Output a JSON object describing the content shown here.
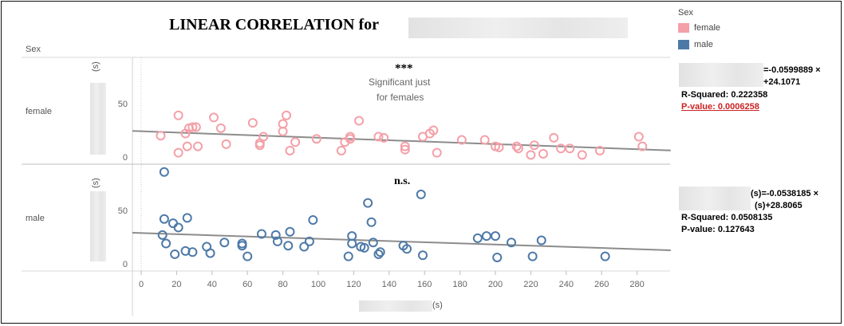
{
  "title": "LINEAR CORRELATION for",
  "row_header": "Sex",
  "x_axis_unit": "(s)",
  "y_axis_unit": "(s)",
  "legend": {
    "title": "Sex",
    "items": [
      {
        "label": "female",
        "color": "#f4a0a8"
      },
      {
        "label": "male",
        "color": "#4e79a7"
      }
    ]
  },
  "panels": [
    {
      "label": "female",
      "marker": "***",
      "annotation": [
        "Significant just",
        "for females"
      ],
      "stats": {
        "eq_line1": "=-0.0599889 ×",
        "eq_line2": "+24.1071",
        "r_squared": "R-Squared: 0.222358",
        "p_value": "P-value: 0.0006258"
      }
    },
    {
      "label": "male",
      "marker": "n.s.",
      "annotation": [],
      "stats": {
        "eq_line1": "(s)=-0.0538185 ×",
        "eq_line2": "(s)+28.8065",
        "r_squared": "R-Squared: 0.0508135",
        "p_value": "P-value: 0.127643"
      }
    }
  ],
  "chart_data": {
    "type": "scatter",
    "x_ticks": [
      0,
      20,
      40,
      60,
      80,
      100,
      120,
      140,
      160,
      180,
      200,
      220,
      240,
      260,
      280
    ],
    "xlim": [
      -5,
      299
    ],
    "ylim": [
      -5,
      95
    ],
    "y_ticks": [
      0,
      50
    ],
    "series": [
      {
        "name": "female",
        "color": "#f4a0a8",
        "trend": {
          "slope": -0.0599889,
          "intercept": 24.1071
        },
        "points": [
          [
            11,
            20
          ],
          [
            21,
            39
          ],
          [
            21,
            4
          ],
          [
            25,
            22
          ],
          [
            26,
            10
          ],
          [
            27,
            27
          ],
          [
            29,
            28
          ],
          [
            31,
            28
          ],
          [
            32,
            10
          ],
          [
            41,
            37
          ],
          [
            45,
            27
          ],
          [
            48,
            12
          ],
          [
            63,
            32
          ],
          [
            67,
            11
          ],
          [
            67,
            13
          ],
          [
            69,
            19
          ],
          [
            80,
            24
          ],
          [
            80,
            31
          ],
          [
            82,
            39
          ],
          [
            84,
            6
          ],
          [
            87,
            14
          ],
          [
            99,
            17
          ],
          [
            113,
            6
          ],
          [
            115,
            14
          ],
          [
            118,
            17
          ],
          [
            118,
            19
          ],
          [
            123,
            34
          ],
          [
            134,
            19
          ],
          [
            137,
            18
          ],
          [
            149,
            10
          ],
          [
            149,
            7
          ],
          [
            159,
            19
          ],
          [
            163,
            22
          ],
          [
            165,
            25
          ],
          [
            167,
            4
          ],
          [
            181,
            16
          ],
          [
            194,
            16
          ],
          [
            200,
            10
          ],
          [
            202,
            9
          ],
          [
            212,
            10
          ],
          [
            213,
            8
          ],
          [
            220,
            2
          ],
          [
            222,
            11
          ],
          [
            227,
            3
          ],
          [
            233,
            18
          ],
          [
            237,
            8
          ],
          [
            242,
            8
          ],
          [
            249,
            2
          ],
          [
            259,
            6
          ],
          [
            281,
            19
          ],
          [
            283,
            10
          ]
        ]
      },
      {
        "name": "male",
        "color": "#4e79a7",
        "trend": {
          "slope": -0.0538185,
          "intercept": 28.8065
        },
        "points": [
          [
            13,
            86
          ],
          [
            12,
            27
          ],
          [
            13,
            42
          ],
          [
            14,
            19
          ],
          [
            18,
            38
          ],
          [
            19,
            9
          ],
          [
            21,
            34
          ],
          [
            25,
            12
          ],
          [
            26,
            43
          ],
          [
            29,
            11
          ],
          [
            37,
            16
          ],
          [
            39,
            10
          ],
          [
            47,
            20
          ],
          [
            57,
            19
          ],
          [
            57,
            17
          ],
          [
            60,
            7
          ],
          [
            68,
            28
          ],
          [
            76,
            27
          ],
          [
            77,
            21
          ],
          [
            83,
            17
          ],
          [
            84,
            30
          ],
          [
            92,
            16
          ],
          [
            95,
            21
          ],
          [
            97,
            41
          ],
          [
            117,
            7
          ],
          [
            119,
            26
          ],
          [
            119,
            19
          ],
          [
            124,
            16
          ],
          [
            126,
            15
          ],
          [
            128,
            57
          ],
          [
            130,
            39
          ],
          [
            131,
            20
          ],
          [
            134,
            9
          ],
          [
            135,
            11
          ],
          [
            148,
            17
          ],
          [
            150,
            14
          ],
          [
            158,
            65
          ],
          [
            159,
            8
          ],
          [
            190,
            24
          ],
          [
            195,
            26
          ],
          [
            200,
            26
          ],
          [
            201,
            6
          ],
          [
            209,
            20
          ],
          [
            221,
            7
          ],
          [
            226,
            22
          ],
          [
            262,
            7
          ]
        ]
      }
    ]
  }
}
